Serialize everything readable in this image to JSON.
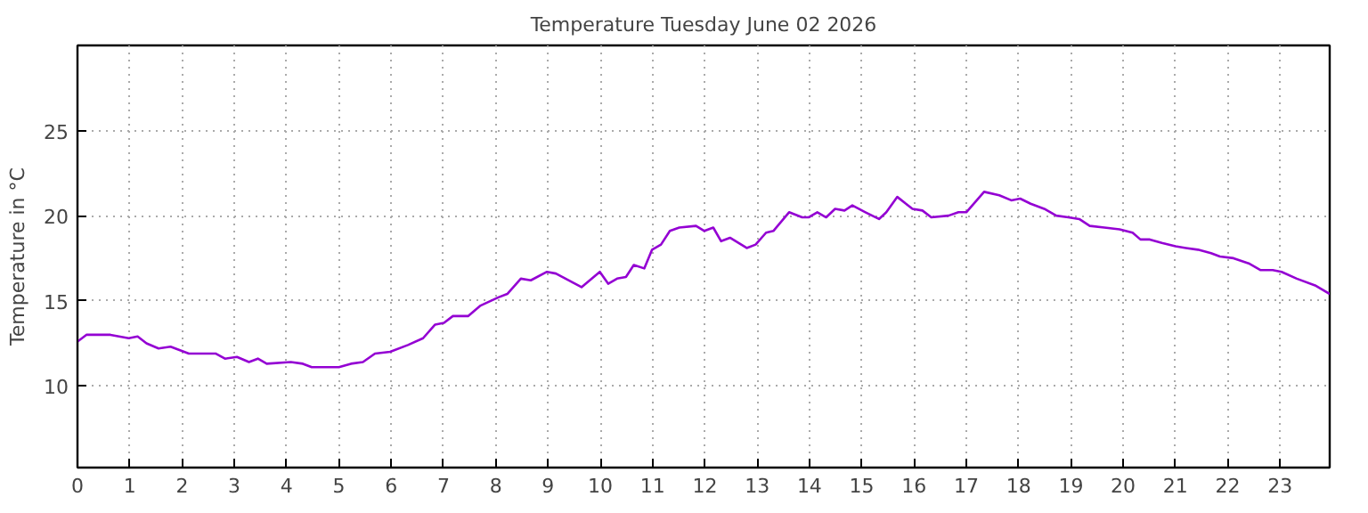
{
  "chart_data": {
    "type": "line",
    "title": "Temperature Tuesday June 02 2026",
    "ylabel": "Temperature in °C",
    "xlim": [
      0,
      23.95
    ],
    "ylim": [
      5.2,
      30
    ],
    "xticks": [
      0,
      1,
      2,
      3,
      4,
      5,
      6,
      7,
      8,
      9,
      10,
      11,
      12,
      13,
      14,
      15,
      16,
      17,
      18,
      19,
      20,
      21,
      22,
      23
    ],
    "yticks": [
      10,
      15,
      20,
      25
    ],
    "grid": true,
    "line_style": "solid",
    "marker": "none",
    "x": [
      0,
      0.17,
      0.34,
      0.63,
      0.98,
      1.15,
      1.32,
      1.55,
      1.78,
      2.13,
      2.64,
      2.82,
      3.05,
      3.28,
      3.45,
      3.62,
      4.08,
      4.31,
      4.48,
      5.0,
      5.23,
      5.46,
      5.69,
      5.98,
      6.32,
      6.61,
      6.84,
      7.01,
      7.18,
      7.47,
      7.7,
      8.05,
      8.22,
      8.48,
      8.67,
      8.98,
      9.15,
      9.64,
      9.99,
      10.15,
      10.32,
      10.49,
      10.64,
      10.84,
      10.99,
      11.16,
      11.33,
      11.51,
      11.83,
      11.99,
      12.16,
      12.31,
      12.48,
      12.8,
      12.97,
      13.17,
      13.31,
      13.61,
      13.86,
      13.98,
      14.15,
      14.32,
      14.49,
      14.67,
      14.82,
      15.07,
      15.33,
      15.47,
      15.68,
      15.97,
      16.16,
      16.33,
      16.66,
      16.85,
      17.0,
      17.34,
      17.63,
      17.86,
      18.03,
      18.23,
      18.49,
      18.72,
      18.95,
      19.16,
      19.36,
      19.64,
      19.93,
      20.18,
      20.33,
      20.51,
      20.74,
      21.0,
      21.2,
      21.43,
      21.68,
      21.85,
      22.11,
      22.4,
      22.63,
      22.86,
      23.03,
      23.32,
      23.67,
      23.95
    ],
    "series": [
      {
        "color": "#9400d3",
        "values": [
          12.6,
          13.0,
          13.0,
          13.0,
          12.8,
          12.9,
          12.5,
          12.2,
          12.3,
          11.9,
          11.9,
          11.6,
          11.7,
          11.4,
          11.6,
          11.3,
          11.4,
          11.3,
          11.1,
          11.1,
          11.3,
          11.4,
          11.9,
          12.0,
          12.4,
          12.8,
          13.6,
          13.7,
          14.1,
          14.1,
          14.7,
          15.2,
          15.4,
          16.3,
          16.2,
          16.7,
          16.6,
          15.8,
          16.7,
          16.0,
          16.3,
          16.4,
          17.1,
          16.9,
          18.0,
          18.3,
          19.1,
          19.3,
          19.4,
          19.1,
          19.3,
          18.5,
          18.7,
          18.1,
          18.3,
          19.0,
          19.1,
          20.2,
          19.9,
          19.9,
          20.2,
          19.9,
          20.4,
          20.3,
          20.6,
          20.2,
          19.8,
          20.2,
          21.1,
          20.4,
          20.3,
          19.9,
          20.0,
          20.2,
          20.2,
          21.4,
          21.2,
          20.9,
          21.0,
          20.7,
          20.4,
          20.0,
          19.9,
          19.8,
          19.4,
          19.3,
          19.2,
          19.0,
          18.6,
          18.6,
          18.4,
          18.2,
          18.1,
          18.0,
          17.8,
          17.6,
          17.5,
          17.2,
          16.8,
          16.8,
          16.7,
          16.3,
          15.9,
          15.4
        ]
      }
    ]
  }
}
